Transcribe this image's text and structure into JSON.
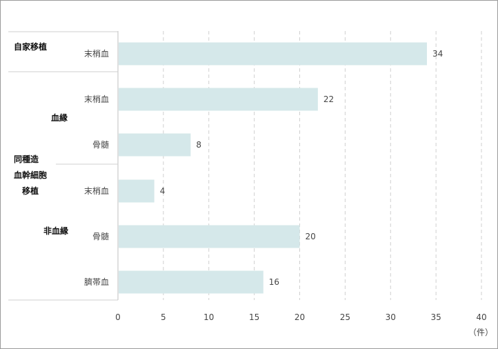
{
  "chart_data": {
    "type": "bar",
    "orientation": "horizontal",
    "unit": "（件）",
    "xlim": [
      0,
      40
    ],
    "ticks": [
      0,
      5,
      10,
      15,
      20,
      25,
      30,
      35,
      40
    ],
    "grid": true,
    "colors": {
      "bar": "#d5e8ea",
      "grid": "#cfcfcf",
      "border": "#9a9a9a"
    },
    "groups": [
      {
        "label": "自家移植",
        "subgroups": [
          {
            "label": "",
            "categories": [
              "末梢血"
            ]
          }
        ]
      },
      {
        "label": "同種造\n血幹細胞\n移植",
        "subgroups": [
          {
            "label": "血縁",
            "categories": [
              "末梢血",
              "骨髄"
            ]
          },
          {
            "label": "非血縁",
            "categories": [
              "末梢血",
              "骨髄",
              "臍帯血"
            ]
          }
        ]
      }
    ],
    "categories": [
      "末梢血",
      "末梢血",
      "骨髄",
      "末梢血",
      "骨髄",
      "臍帯血"
    ],
    "values": [
      34,
      22,
      8,
      4,
      20,
      16
    ]
  }
}
